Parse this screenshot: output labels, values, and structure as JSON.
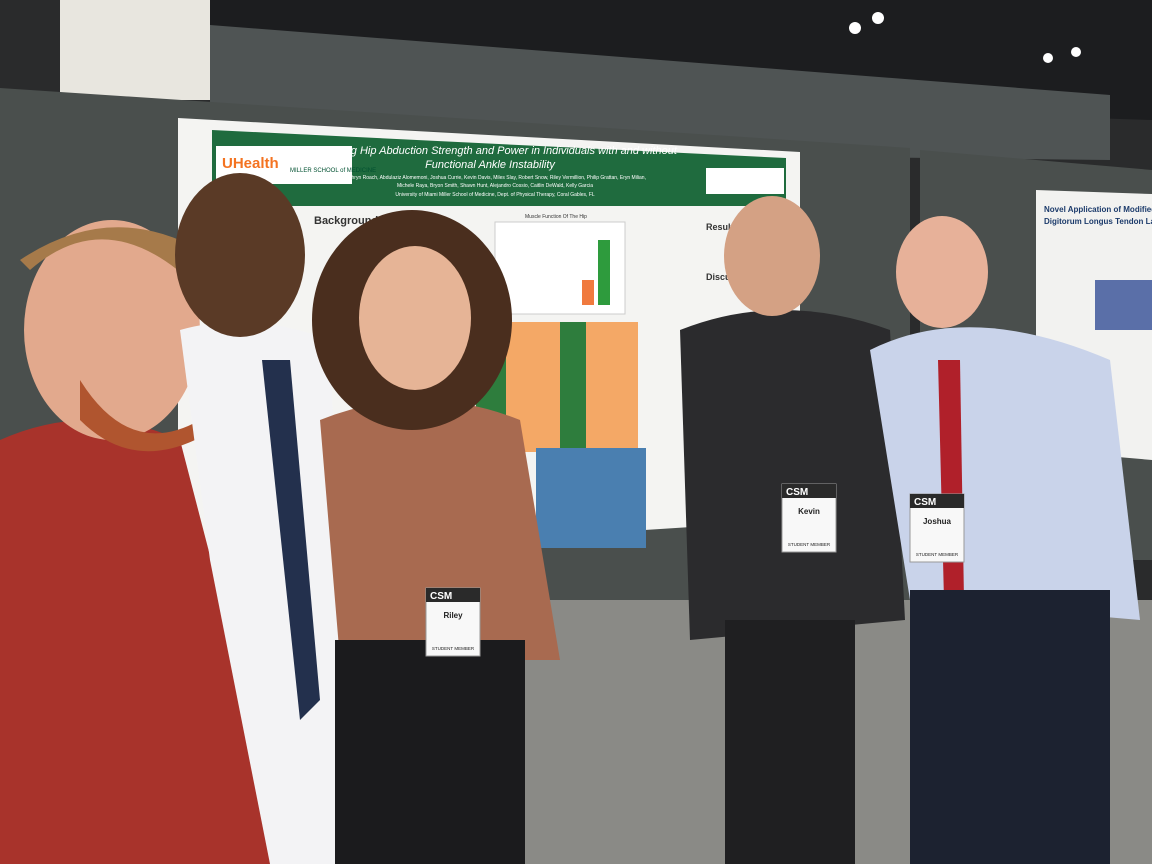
{
  "poster": {
    "logo": "UHealth",
    "logo_sub": "MILLER SCHOOL of MEDICINE",
    "title_line1": "Comparing Hip Abduction Strength and Power in Individuals with and without",
    "title_line2": "Functional Ankle Instability",
    "authors_line1": "Kathryn Roach, Abdulaziz Alomemoni, Joshua Currie, Kevin Davis, Miles Slay, Robert Snow, Riley Vermillion, Philip Grattan, Eryn Milian,",
    "authors_line2": "Michele Raya, Bryon Smith, Shawn Hunt, Alejandro Cossio, Caitlin DeWald, Kelly Garcia",
    "affiliation": "University of Miami Miller School of Medicine, Dept. of Physical Therapy, Coral Gables, FL",
    "sections": [
      "Background",
      "Results",
      "Discussion"
    ],
    "chart_title": "Muscle Function Of The Hip"
  },
  "badges": [
    {
      "brand": "CSM",
      "name": "Riley",
      "role": "STUDENT MEMBER"
    },
    {
      "brand": "CSM",
      "name": "Kevin",
      "role": "STUDENT MEMBER"
    },
    {
      "brand": "CSM",
      "name": "Joshua",
      "role": "STUDENT MEMBER"
    }
  ],
  "second_poster": {
    "title_line1": "Novel Application of Modified-Duran Proto",
    "title_line2": "Digitorum Longus Tendon Laceration Foll"
  }
}
